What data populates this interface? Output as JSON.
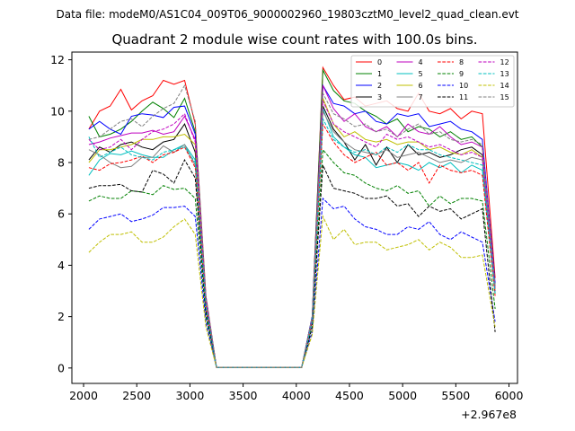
{
  "chart_data": {
    "type": "line",
    "suptitle": "Data file: modeM0/AS1C04_009T06_9000002960_19803cztM0_level2_quad_clean.evt",
    "title": "Quadrant 2 module wise count rates with 100.0s bins.",
    "xlabel": "",
    "ylabel": "",
    "x_offset_text": "+2.967e8",
    "x_offset_value": 296700000,
    "xlim": [
      1890,
      6080
    ],
    "ylim": [
      -0.6,
      12.3
    ],
    "xticks": [
      2000,
      2500,
      3000,
      3500,
      4000,
      4500,
      5000,
      5500,
      6000
    ],
    "xtick_labels": [
      "2000",
      "2500",
      "3000",
      "3500",
      "4000",
      "4500",
      "5000",
      "5500",
      "6000"
    ],
    "yticks": [
      0,
      2,
      4,
      6,
      8,
      10,
      12
    ],
    "ytick_labels": [
      "0",
      "2",
      "4",
      "6",
      "8",
      "10",
      "12"
    ],
    "grid": false,
    "legend_position": "top-right",
    "legend_columns": 4,
    "x": [
      2050,
      2150,
      2250,
      2350,
      2450,
      2550,
      2650,
      2750,
      2850,
      2950,
      3050,
      3150,
      3250,
      3350,
      3450,
      3550,
      3650,
      3750,
      3850,
      3950,
      4050,
      4150,
      4250,
      4350,
      4450,
      4550,
      4650,
      4750,
      4850,
      4950,
      5050,
      5150,
      5250,
      5350,
      5450,
      5550,
      5650,
      5750,
      5870
    ],
    "series": [
      {
        "name": "0",
        "color": "#ff0000",
        "dash": "solid",
        "values": [
          9.3,
          10.0,
          10.2,
          10.85,
          10.05,
          10.4,
          10.6,
          11.2,
          11.05,
          11.2,
          9.5,
          2.8,
          0.02,
          0.02,
          0.02,
          0.02,
          0.02,
          0.02,
          0.02,
          0.02,
          0.02,
          2.0,
          11.7,
          11.0,
          10.45,
          10.55,
          10.2,
          10.3,
          10.4,
          10.1,
          10.0,
          10.7,
          10.0,
          9.9,
          10.1,
          9.7,
          10.0,
          9.9,
          3.5
        ]
      },
      {
        "name": "1",
        "color": "#008000",
        "dash": "solid",
        "values": [
          9.8,
          9.0,
          9.1,
          9.3,
          9.6,
          10.0,
          10.35,
          10.1,
          9.75,
          10.5,
          9.2,
          2.7,
          0.02,
          0.02,
          0.02,
          0.02,
          0.02,
          0.02,
          0.02,
          0.02,
          0.02,
          2.0,
          11.6,
          10.8,
          10.4,
          10.3,
          10.0,
          9.8,
          9.5,
          9.7,
          9.2,
          9.4,
          9.3,
          9.0,
          9.2,
          8.9,
          9.0,
          8.6,
          3.2
        ]
      },
      {
        "name": "2",
        "color": "#0000ff",
        "dash": "solid",
        "values": [
          9.3,
          9.6,
          9.3,
          9.1,
          9.8,
          9.9,
          9.85,
          9.75,
          10.15,
          10.2,
          9.1,
          2.7,
          0.02,
          0.02,
          0.02,
          0.02,
          0.02,
          0.02,
          0.02,
          0.02,
          0.02,
          2.0,
          11.0,
          10.3,
          10.2,
          9.9,
          10.0,
          9.6,
          9.5,
          9.9,
          9.8,
          9.9,
          9.4,
          9.5,
          9.6,
          9.3,
          9.2,
          8.9,
          3.3
        ]
      },
      {
        "name": "3",
        "color": "#000000",
        "dash": "solid",
        "values": [
          8.1,
          8.6,
          8.4,
          8.7,
          8.8,
          8.6,
          8.5,
          8.8,
          8.9,
          9.5,
          8.4,
          2.5,
          0.02,
          0.02,
          0.02,
          0.02,
          0.02,
          0.02,
          0.02,
          0.02,
          0.02,
          1.9,
          10.2,
          9.3,
          8.8,
          8.1,
          8.7,
          7.9,
          8.6,
          8.0,
          8.7,
          8.3,
          8.4,
          8.2,
          8.3,
          8.5,
          8.6,
          8.3,
          3.0
        ]
      },
      {
        "name": "4",
        "color": "#bf00bf",
        "dash": "solid",
        "values": [
          8.7,
          8.8,
          8.95,
          9.05,
          9.15,
          9.15,
          9.25,
          9.1,
          9.2,
          9.8,
          8.9,
          2.6,
          0.02,
          0.02,
          0.02,
          0.02,
          0.02,
          0.02,
          0.02,
          0.02,
          0.02,
          1.9,
          11.0,
          10.1,
          9.6,
          9.9,
          9.4,
          9.2,
          9.4,
          9.0,
          9.5,
          9.2,
          9.1,
          9.4,
          9.0,
          8.7,
          8.8,
          8.6,
          3.1
        ]
      },
      {
        "name": "5",
        "color": "#00bfbf",
        "dash": "solid",
        "values": [
          7.5,
          8.1,
          8.35,
          8.3,
          8.45,
          8.3,
          8.2,
          8.2,
          8.5,
          8.7,
          8.1,
          2.4,
          0.02,
          0.02,
          0.02,
          0.02,
          0.02,
          0.02,
          0.02,
          0.02,
          0.02,
          1.8,
          10.1,
          9.0,
          8.6,
          8.3,
          8.2,
          7.8,
          7.9,
          8.0,
          7.9,
          7.7,
          8.0,
          7.8,
          8.0,
          7.6,
          7.9,
          7.7,
          2.9
        ]
      },
      {
        "name": "6",
        "color": "#bfbf00",
        "dash": "solid",
        "values": [
          8.0,
          8.5,
          8.5,
          8.6,
          8.7,
          8.9,
          8.9,
          9.0,
          9.0,
          9.1,
          8.7,
          2.5,
          0.02,
          0.02,
          0.02,
          0.02,
          0.02,
          0.02,
          0.02,
          0.02,
          0.02,
          1.9,
          10.5,
          9.5,
          9.0,
          9.2,
          8.9,
          8.8,
          8.9,
          8.7,
          8.8,
          8.8,
          8.5,
          8.6,
          8.4,
          8.3,
          8.5,
          8.2,
          3.0
        ]
      },
      {
        "name": "7",
        "color": "#808080",
        "dash": "solid",
        "values": [
          8.5,
          8.3,
          8.0,
          7.8,
          7.85,
          8.2,
          8.2,
          8.65,
          8.4,
          8.7,
          7.9,
          2.4,
          0.02,
          0.02,
          0.02,
          0.02,
          0.02,
          0.02,
          0.02,
          0.02,
          0.02,
          1.8,
          10.0,
          9.2,
          8.8,
          8.5,
          8.4,
          8.3,
          8.5,
          8.2,
          8.3,
          8.4,
          8.2,
          8.0,
          8.1,
          8.0,
          8.2,
          8.1,
          2.9
        ]
      },
      {
        "name": "8",
        "color": "#ff0000",
        "dash": "dashed",
        "values": [
          7.8,
          7.7,
          7.95,
          8.0,
          8.1,
          8.25,
          8.0,
          8.3,
          8.4,
          8.6,
          7.8,
          2.3,
          0.02,
          0.02,
          0.02,
          0.02,
          0.02,
          0.02,
          0.02,
          0.02,
          0.02,
          1.8,
          9.5,
          8.8,
          8.3,
          8.0,
          8.2,
          8.4,
          7.9,
          8.0,
          7.7,
          8.0,
          7.2,
          7.9,
          7.7,
          7.6,
          7.7,
          7.5,
          2.8
        ]
      },
      {
        "name": "9",
        "color": "#008000",
        "dash": "dashed",
        "values": [
          6.5,
          6.7,
          6.6,
          6.6,
          6.9,
          6.85,
          6.75,
          7.1,
          6.95,
          7.0,
          6.6,
          2.0,
          0.02,
          0.02,
          0.02,
          0.02,
          0.02,
          0.02,
          0.02,
          0.02,
          0.02,
          1.6,
          8.5,
          8.0,
          7.6,
          7.5,
          7.2,
          7.0,
          6.9,
          7.1,
          6.8,
          6.9,
          6.3,
          6.7,
          6.4,
          6.6,
          6.6,
          6.5,
          2.3
        ]
      },
      {
        "name": "10",
        "color": "#0000ff",
        "dash": "dashed",
        "values": [
          5.4,
          5.8,
          5.9,
          6.0,
          5.7,
          5.8,
          5.95,
          6.25,
          6.25,
          6.3,
          5.9,
          1.8,
          0.02,
          0.02,
          0.02,
          0.02,
          0.02,
          0.02,
          0.02,
          0.02,
          0.02,
          1.4,
          6.6,
          6.2,
          6.3,
          5.8,
          5.5,
          5.4,
          5.2,
          5.2,
          5.5,
          5.4,
          5.7,
          5.2,
          5.0,
          5.3,
          5.1,
          4.9,
          1.8
        ]
      },
      {
        "name": "11",
        "color": "#000000",
        "dash": "dashed",
        "values": [
          7.0,
          7.1,
          7.1,
          7.15,
          6.9,
          6.85,
          7.7,
          7.55,
          7.2,
          8.1,
          7.4,
          2.2,
          0.02,
          0.02,
          0.02,
          0.02,
          0.02,
          0.02,
          0.02,
          0.02,
          0.02,
          1.6,
          7.9,
          7.0,
          6.9,
          6.8,
          6.6,
          6.6,
          6.7,
          6.3,
          6.4,
          5.9,
          6.3,
          6.1,
          6.2,
          5.8,
          6.0,
          6.2,
          1.4
        ]
      },
      {
        "name": "12",
        "color": "#bf00bf",
        "dash": "dashed",
        "values": [
          8.9,
          8.5,
          8.6,
          8.9,
          8.5,
          8.9,
          9.2,
          9.3,
          9.5,
          9.9,
          8.8,
          2.6,
          0.02,
          0.02,
          0.02,
          0.02,
          0.02,
          0.02,
          0.02,
          0.02,
          0.02,
          1.9,
          10.4,
          9.5,
          9.2,
          9.0,
          8.8,
          8.6,
          9.1,
          8.9,
          9.0,
          8.8,
          8.6,
          8.7,
          8.5,
          8.3,
          8.4,
          8.2,
          3.0
        ]
      },
      {
        "name": "13",
        "color": "#00bfbf",
        "dash": "dashed",
        "values": [
          9.0,
          8.2,
          8.4,
          8.6,
          8.3,
          8.2,
          8.1,
          8.4,
          8.5,
          8.6,
          8.0,
          2.4,
          0.02,
          0.02,
          0.02,
          0.02,
          0.02,
          0.02,
          0.02,
          0.02,
          0.02,
          1.8,
          9.7,
          8.9,
          8.6,
          8.4,
          8.5,
          8.3,
          8.6,
          8.4,
          8.7,
          8.5,
          8.5,
          8.3,
          8.2,
          8.1,
          8.0,
          7.9,
          2.9
        ]
      },
      {
        "name": "14",
        "color": "#bfbf00",
        "dash": "dashed",
        "values": [
          4.5,
          4.9,
          5.2,
          5.2,
          5.3,
          4.9,
          4.9,
          5.1,
          5.5,
          5.8,
          5.2,
          1.6,
          0.02,
          0.02,
          0.02,
          0.02,
          0.02,
          0.02,
          0.02,
          0.02,
          0.02,
          1.3,
          5.9,
          5.0,
          5.4,
          4.8,
          4.9,
          4.9,
          4.6,
          4.7,
          4.8,
          5.0,
          4.6,
          4.9,
          4.7,
          4.3,
          4.3,
          4.4,
          1.6
        ]
      },
      {
        "name": "15",
        "color": "#808080",
        "dash": "dashed",
        "values": [
          8.9,
          9.0,
          9.3,
          9.6,
          9.7,
          9.4,
          9.8,
          10.1,
          10.3,
          11.0,
          9.6,
          2.8,
          0.02,
          0.02,
          0.02,
          0.02,
          0.02,
          0.02,
          0.02,
          0.02,
          0.02,
          2.0,
          10.7,
          9.9,
          9.7,
          9.4,
          9.5,
          9.2,
          9.3,
          9.0,
          9.3,
          9.5,
          9.1,
          9.2,
          8.9,
          8.8,
          8.9,
          8.7,
          3.2
        ]
      }
    ]
  }
}
